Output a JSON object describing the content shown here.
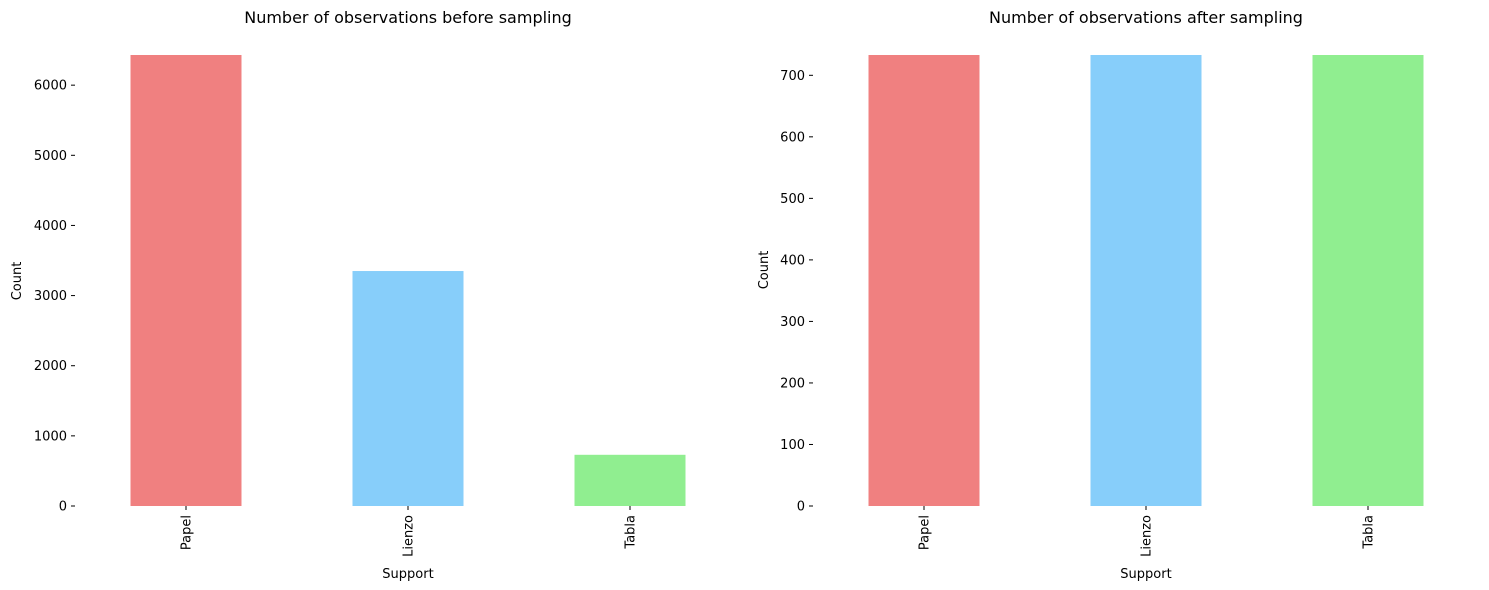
{
  "chart_data": [
    {
      "type": "bar",
      "title": "Number of observations before sampling",
      "xlabel": "Support",
      "ylabel": "Count",
      "categories": [
        "Papel",
        "Lienzo",
        "Tabla"
      ],
      "values": [
        6430,
        3350,
        730
      ],
      "colors": [
        "#f08080",
        "#87cefa",
        "#90ee90"
      ],
      "yticks": [
        0,
        1000,
        2000,
        3000,
        4000,
        5000,
        6000
      ],
      "ylim": [
        0,
        6430
      ],
      "grid": false
    },
    {
      "type": "bar",
      "title": "Number of observations after sampling",
      "xlabel": "Support",
      "ylabel": "Count",
      "categories": [
        "Papel",
        "Lienzo",
        "Tabla"
      ],
      "values": [
        733,
        733,
        733
      ],
      "colors": [
        "#f08080",
        "#87cefa",
        "#90ee90"
      ],
      "yticks": [
        0,
        100,
        200,
        300,
        400,
        500,
        600,
        700
      ],
      "ylim": [
        0,
        733
      ],
      "grid": false
    }
  ]
}
